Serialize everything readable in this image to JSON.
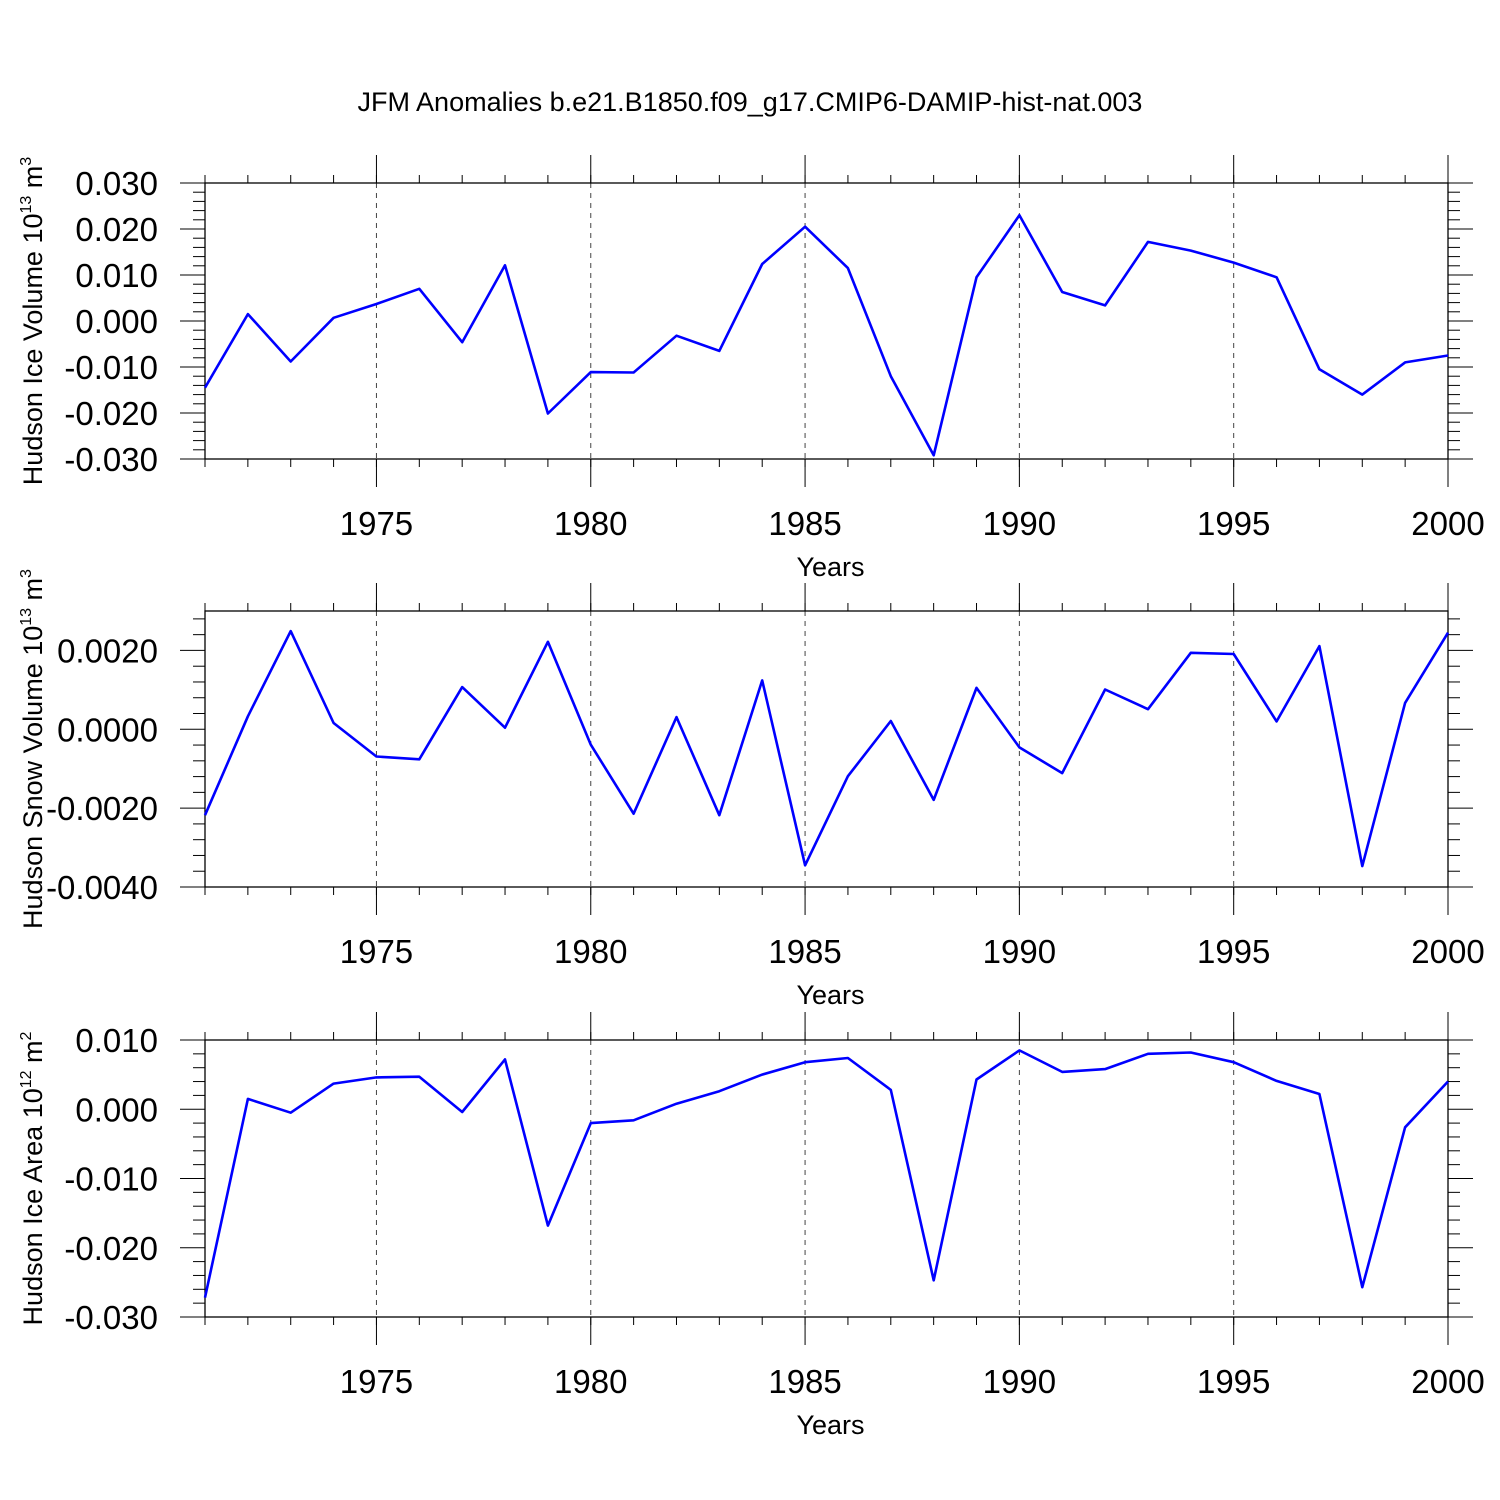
{
  "figure": {
    "title": "JFM Anomalies b.e21.B1850.f09_g17.CMIP6-DAMIP-hist-nat.003"
  },
  "chart_data": [
    {
      "type": "line",
      "title": "",
      "xlabel": "Years",
      "ylabel": "Hudson Ice Volume 10",
      "ylabel_sup": "13",
      "ylabel_unit": "m",
      "ylabel_unit_sup": "3",
      "xlim": [
        1971,
        2000
      ],
      "ylim": [
        -0.03,
        0.03
      ],
      "xticks": [
        1975,
        1980,
        1985,
        1990,
        1995,
        2000
      ],
      "yticks": [
        -0.03,
        -0.02,
        -0.01,
        0.0,
        0.01,
        0.02,
        0.03
      ],
      "ytick_labels": [
        "-0.030",
        "-0.020",
        "-0.010",
        "0.000",
        "0.010",
        "0.020",
        "0.030"
      ],
      "grid": "vertical dashed at major x ticks",
      "line_color": "#0000ff",
      "x": [
        1971,
        1972,
        1973,
        1974,
        1975,
        1976,
        1977,
        1978,
        1979,
        1980,
        1981,
        1982,
        1983,
        1984,
        1985,
        1986,
        1987,
        1988,
        1989,
        1990,
        1991,
        1992,
        1993,
        1994,
        1995,
        1996,
        1997,
        1998,
        1999,
        2000
      ],
      "series": [
        {
          "values": [
            -0.0145,
            0.0015,
            -0.0088,
            0.0007,
            0.0037,
            0.007,
            -0.0046,
            0.0121,
            -0.0201,
            -0.0111,
            -0.0112,
            -0.0032,
            -0.0065,
            0.0124,
            0.0205,
            0.0115,
            -0.012,
            -0.0292,
            0.0095,
            0.023,
            0.0063,
            0.0034,
            0.0172,
            0.0153,
            0.0127,
            0.0095,
            -0.0105,
            -0.016,
            -0.009,
            -0.0075
          ]
        }
      ]
    },
    {
      "type": "line",
      "title": "",
      "xlabel": "Years",
      "ylabel": "Hudson Snow Volume 10",
      "ylabel_sup": "13",
      "ylabel_unit": "m",
      "ylabel_unit_sup": "3",
      "xlim": [
        1971,
        2000
      ],
      "ylim": [
        -0.004,
        0.003
      ],
      "xticks": [
        1975,
        1980,
        1985,
        1990,
        1995,
        2000
      ],
      "yticks": [
        -0.004,
        -0.002,
        0.0,
        0.002
      ],
      "ytick_labels": [
        "-0.0040",
        "-0.0020",
        "0.0000",
        "0.0020"
      ],
      "grid": "vertical dashed at major x ticks",
      "line_color": "#0000ff",
      "x": [
        1971,
        1972,
        1973,
        1974,
        1975,
        1976,
        1977,
        1978,
        1979,
        1980,
        1981,
        1982,
        1983,
        1984,
        1985,
        1986,
        1987,
        1988,
        1989,
        1990,
        1991,
        1992,
        1993,
        1994,
        1995,
        1996,
        1997,
        1998,
        1999,
        2000
      ],
      "series": [
        {
          "values": [
            -0.00218,
            0.00033,
            0.00249,
            0.00016,
            -0.00069,
            -0.00076,
            0.00107,
            4e-05,
            0.00222,
            -0.00039,
            -0.00214,
            0.00031,
            -0.00218,
            0.00124,
            -0.00345,
            -0.00119,
            0.00021,
            -0.00179,
            0.00105,
            -0.00046,
            -0.00111,
            0.00101,
            0.00051,
            0.00194,
            0.00191,
            0.0002,
            0.00211,
            -0.00347,
            0.00067,
            0.00245
          ]
        }
      ]
    },
    {
      "type": "line",
      "title": "",
      "xlabel": "Years",
      "ylabel": "Hudson Ice Area 10",
      "ylabel_sup": "12",
      "ylabel_unit": "m",
      "ylabel_unit_sup": "2",
      "xlim": [
        1971,
        2000
      ],
      "ylim": [
        -0.03,
        0.01
      ],
      "xticks": [
        1975,
        1980,
        1985,
        1990,
        1995,
        2000
      ],
      "yticks": [
        -0.03,
        -0.02,
        -0.01,
        0.0,
        0.01
      ],
      "ytick_labels": [
        "-0.030",
        "-0.020",
        "-0.010",
        "0.000",
        "0.010"
      ],
      "grid": "vertical dashed at major x ticks",
      "line_color": "#0000ff",
      "x": [
        1971,
        1972,
        1973,
        1974,
        1975,
        1976,
        1977,
        1978,
        1979,
        1980,
        1981,
        1982,
        1983,
        1984,
        1985,
        1986,
        1987,
        1988,
        1989,
        1990,
        1991,
        1992,
        1993,
        1994,
        1995,
        1996,
        1997,
        1998,
        1999,
        2000
      ],
      "series": [
        {
          "values": [
            -0.0272,
            0.0015,
            -0.0005,
            0.0037,
            0.0046,
            0.0047,
            -0.0004,
            0.0072,
            -0.0168,
            -0.002,
            -0.0016,
            0.0008,
            0.0026,
            0.005,
            0.0068,
            0.0074,
            0.0028,
            -0.0247,
            0.0043,
            0.0085,
            0.0054,
            0.0058,
            0.008,
            0.0082,
            0.0068,
            0.0041,
            0.0022,
            -0.0257,
            -0.0026,
            0.004
          ]
        }
      ]
    }
  ]
}
